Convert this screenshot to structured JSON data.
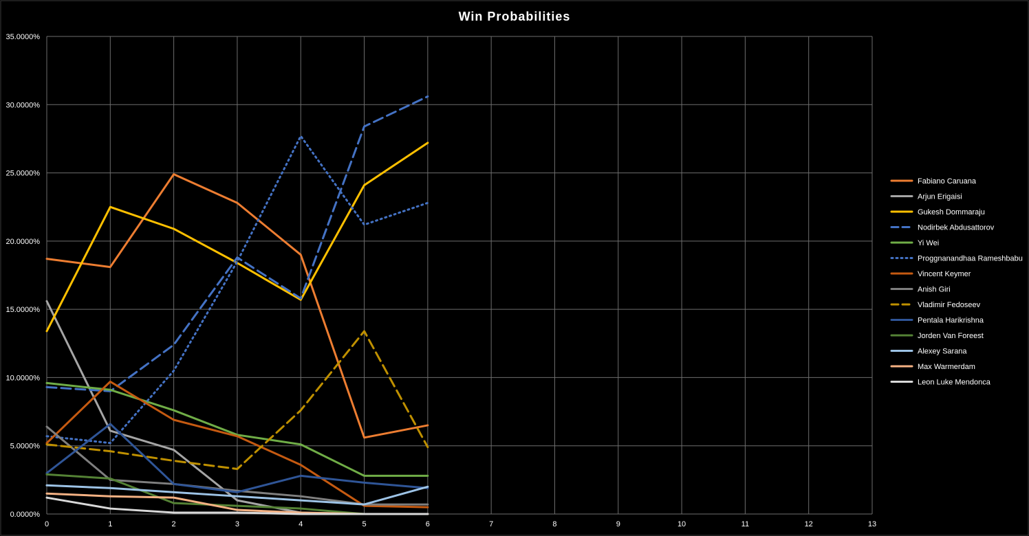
{
  "chart_data": {
    "type": "line",
    "title": "Win Probabilities",
    "xlabel": "",
    "ylabel": "",
    "x": [
      0,
      1,
      2,
      3,
      4,
      5,
      6
    ],
    "x_ticks": [
      "0",
      "1",
      "2",
      "3",
      "4",
      "5",
      "6",
      "7",
      "8",
      "9",
      "10",
      "11",
      "12",
      "13"
    ],
    "xlim": [
      0,
      13
    ],
    "ylim": [
      0,
      0.35
    ],
    "y_ticks": [
      "0.0000%",
      "5.0000%",
      "10.0000%",
      "15.0000%",
      "20.0000%",
      "25.0000%",
      "30.0000%",
      "35.0000%"
    ],
    "grid": true,
    "legend_position": "right",
    "background": "#000000",
    "series": [
      {
        "name": "Fabiano Caruana",
        "color": "#ED7D31",
        "dash": "solid",
        "values": [
          0.187,
          0.181,
          0.249,
          0.228,
          0.19,
          0.056,
          0.065
        ]
      },
      {
        "name": "Arjun Erigaisi",
        "color": "#A5A5A5",
        "dash": "solid",
        "values": [
          0.156,
          0.061,
          0.047,
          0.01,
          0.001,
          0.0,
          0.0
        ]
      },
      {
        "name": "Gukesh Dommaraju",
        "color": "#FFC000",
        "dash": "solid",
        "values": [
          0.134,
          0.225,
          0.209,
          0.184,
          0.157,
          0.241,
          0.272
        ]
      },
      {
        "name": "Nodirbek Abdusattorov",
        "color": "#4472C4",
        "dash": "dash",
        "values": [
          0.093,
          0.09,
          0.124,
          0.188,
          0.158,
          0.284,
          0.306
        ]
      },
      {
        "name": "Yi Wei",
        "color": "#70AD47",
        "dash": "solid",
        "values": [
          0.096,
          0.091,
          0.076,
          0.058,
          0.051,
          0.028,
          0.028
        ]
      },
      {
        "name": "Proggnanandhaa Rameshbabu",
        "color": "#4472C4",
        "dash": "dot",
        "values": [
          0.057,
          0.052,
          0.105,
          0.185,
          0.277,
          0.212,
          0.228
        ]
      },
      {
        "name": "Vincent Keymer",
        "color": "#C55A11",
        "dash": "solid",
        "values": [
          0.052,
          0.097,
          0.069,
          0.057,
          0.036,
          0.006,
          0.005
        ]
      },
      {
        "name": "Anish Giri",
        "color": "#7F7F7F",
        "dash": "solid",
        "values": [
          0.064,
          0.025,
          0.022,
          0.017,
          0.013,
          0.007,
          0.007
        ]
      },
      {
        "name": "Vladimir Fedoseev",
        "color": "#BF9000",
        "dash": "dash",
        "values": [
          0.051,
          0.046,
          0.039,
          0.033,
          0.076,
          0.134,
          0.049
        ]
      },
      {
        "name": "Pentala Harikrishna",
        "color": "#2F5597",
        "dash": "solid",
        "values": [
          0.03,
          0.066,
          0.022,
          0.016,
          0.028,
          0.023,
          0.019
        ]
      },
      {
        "name": "Jorden Van Foreest",
        "color": "#548235",
        "dash": "solid",
        "values": [
          0.029,
          0.026,
          0.008,
          0.006,
          0.004,
          0.0,
          0.0
        ]
      },
      {
        "name": "Alexey Sarana",
        "color": "#9DC3E6",
        "dash": "solid",
        "values": [
          0.021,
          0.019,
          0.016,
          0.013,
          0.01,
          0.007,
          0.02
        ]
      },
      {
        "name": "Max Warmerdam",
        "color": "#F4B183",
        "dash": "solid",
        "values": [
          0.015,
          0.013,
          0.012,
          0.003,
          0.001,
          0.0,
          0.0
        ]
      },
      {
        "name": "Leon Luke Mendonca",
        "color": "#D9D9D9",
        "dash": "solid",
        "values": [
          0.012,
          0.004,
          0.001,
          0.001,
          0.0,
          0.0,
          0.0
        ]
      }
    ]
  }
}
